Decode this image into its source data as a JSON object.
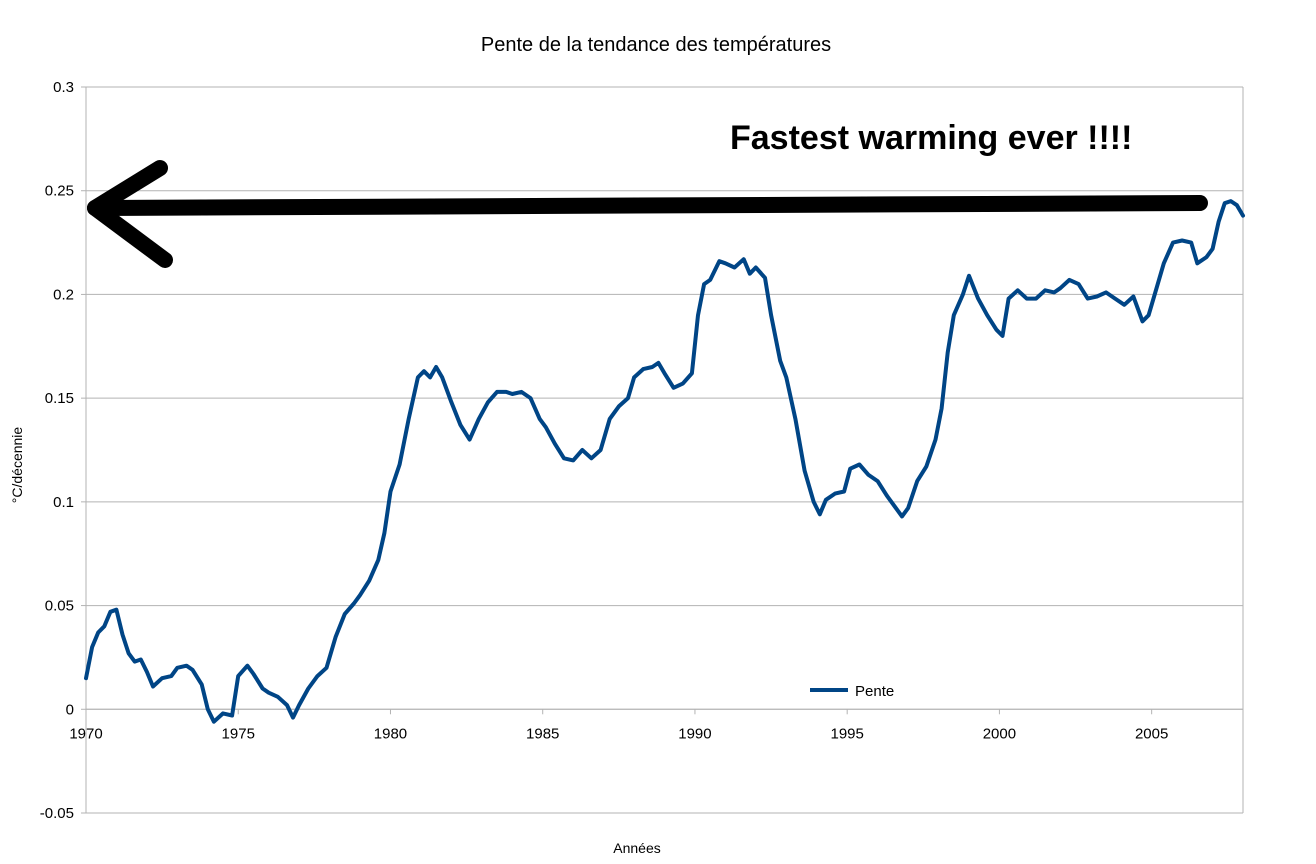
{
  "chart_data": {
    "type": "line",
    "title": "Pente de la tendance des températures",
    "xlabel": "Années",
    "ylabel": "°C/décennie",
    "xlim": [
      1970,
      2008
    ],
    "ylim": [
      -0.05,
      0.3
    ],
    "x_ticks": [
      1970,
      1975,
      1980,
      1985,
      1990,
      1995,
      2000,
      2005
    ],
    "x_tick_labels": [
      "1970",
      "1975",
      "1980",
      "1985",
      "1990",
      "1995",
      "2000",
      "2005"
    ],
    "y_ticks": [
      -0.05,
      0,
      0.05,
      0.1,
      0.15,
      0.2,
      0.25,
      0.3
    ],
    "y_tick_labels": [
      "-0.05",
      "0",
      "0.05",
      "0.1",
      "0.15",
      "0.2",
      "0.25",
      "0.3"
    ],
    "grid": "horizontal",
    "legend": "bottom-center",
    "series": [
      {
        "name": "Pente",
        "color": "#004586",
        "x": [
          1970.0,
          1970.2,
          1970.4,
          1970.6,
          1970.8,
          1971.0,
          1971.2,
          1971.4,
          1971.6,
          1971.8,
          1972.0,
          1972.2,
          1972.5,
          1972.8,
          1973.0,
          1973.3,
          1973.5,
          1973.8,
          1974.0,
          1974.2,
          1974.5,
          1974.8,
          1975.0,
          1975.3,
          1975.5,
          1975.8,
          1976.0,
          1976.3,
          1976.6,
          1976.8,
          1977.0,
          1977.3,
          1977.6,
          1977.9,
          1978.2,
          1978.5,
          1978.8,
          1979.0,
          1979.3,
          1979.6,
          1979.8,
          1980.0,
          1980.3,
          1980.6,
          1980.9,
          1981.1,
          1981.3,
          1981.5,
          1981.7,
          1982.0,
          1982.3,
          1982.6,
          1982.9,
          1983.2,
          1983.5,
          1983.8,
          1984.0,
          1984.3,
          1984.6,
          1984.9,
          1985.1,
          1985.4,
          1985.7,
          1986.0,
          1986.3,
          1986.6,
          1986.9,
          1987.2,
          1987.5,
          1987.8,
          1988.0,
          1988.3,
          1988.6,
          1988.8,
          1989.0,
          1989.3,
          1989.6,
          1989.9,
          1990.1,
          1990.3,
          1990.5,
          1990.8,
          1991.0,
          1991.3,
          1991.6,
          1991.8,
          1992.0,
          1992.3,
          1992.5,
          1992.8,
          1993.0,
          1993.3,
          1993.6,
          1993.9,
          1994.1,
          1994.3,
          1994.6,
          1994.9,
          1995.1,
          1995.4,
          1995.7,
          1996.0,
          1996.3,
          1996.6,
          1996.8,
          1997.0,
          1997.3,
          1997.6,
          1997.9,
          1998.1,
          1998.3,
          1998.5,
          1998.8,
          1999.0,
          1999.3,
          1999.6,
          1999.9,
          2000.1,
          2000.3,
          2000.6,
          2000.9,
          2001.2,
          2001.5,
          2001.8,
          2002.0,
          2002.3,
          2002.6,
          2002.9,
          2003.2,
          2003.5,
          2003.8,
          2004.1,
          2004.4,
          2004.7,
          2004.9,
          2005.1,
          2005.4,
          2005.7,
          2006.0,
          2006.3,
          2006.5,
          2006.8,
          2007.0,
          2007.2,
          2007.4,
          2007.6,
          2007.8,
          2008.0
        ],
        "values": [
          0.015,
          0.03,
          0.037,
          0.04,
          0.047,
          0.048,
          0.036,
          0.027,
          0.023,
          0.024,
          0.018,
          0.011,
          0.015,
          0.016,
          0.02,
          0.021,
          0.019,
          0.012,
          0.0,
          -0.006,
          -0.002,
          -0.003,
          0.016,
          0.021,
          0.017,
          0.01,
          0.008,
          0.006,
          0.002,
          -0.004,
          0.002,
          0.01,
          0.016,
          0.02,
          0.035,
          0.046,
          0.051,
          0.055,
          0.062,
          0.072,
          0.085,
          0.105,
          0.118,
          0.14,
          0.16,
          0.163,
          0.16,
          0.165,
          0.16,
          0.148,
          0.137,
          0.13,
          0.14,
          0.148,
          0.153,
          0.153,
          0.152,
          0.153,
          0.15,
          0.14,
          0.136,
          0.128,
          0.121,
          0.12,
          0.125,
          0.121,
          0.125,
          0.14,
          0.146,
          0.15,
          0.16,
          0.164,
          0.165,
          0.167,
          0.162,
          0.155,
          0.157,
          0.162,
          0.19,
          0.205,
          0.207,
          0.216,
          0.215,
          0.213,
          0.217,
          0.21,
          0.213,
          0.208,
          0.19,
          0.168,
          0.16,
          0.14,
          0.115,
          0.1,
          0.094,
          0.101,
          0.104,
          0.105,
          0.116,
          0.118,
          0.113,
          0.11,
          0.103,
          0.097,
          0.093,
          0.097,
          0.11,
          0.117,
          0.13,
          0.145,
          0.172,
          0.19,
          0.2,
          0.209,
          0.198,
          0.19,
          0.183,
          0.18,
          0.198,
          0.202,
          0.198,
          0.198,
          0.202,
          0.201,
          0.203,
          0.207,
          0.205,
          0.198,
          0.199,
          0.201,
          0.198,
          0.195,
          0.199,
          0.187,
          0.19,
          0.2,
          0.215,
          0.225,
          0.226,
          0.225,
          0.215,
          0.218,
          0.222,
          0.235,
          0.244,
          0.245,
          0.243,
          0.238
        ]
      }
    ],
    "annotations": [
      {
        "text": "Fastest warming ever !!!!",
        "arrow": "from the 2007 peak back to the y-axis at about 0.242"
      }
    ]
  }
}
